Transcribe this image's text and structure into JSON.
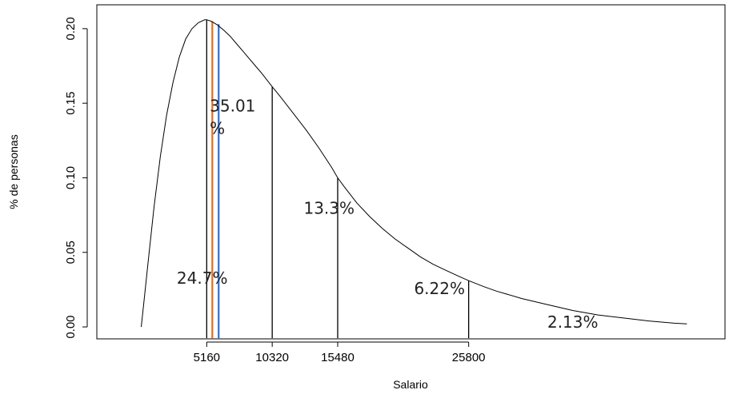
{
  "chart_data": {
    "type": "line",
    "title": "",
    "xlabel": "Salario",
    "ylabel": "% de personas",
    "xlim": [
      -3500,
      46000
    ],
    "ylim": [
      -0.008,
      0.216
    ],
    "grid": false,
    "legend": "none",
    "curve_color": "#000000",
    "x_ticks": [
      {
        "value": 5160,
        "label": "5160"
      },
      {
        "value": 10320,
        "label": "10320"
      },
      {
        "value": 15480,
        "label": "15480"
      },
      {
        "value": 25800,
        "label": "25800"
      }
    ],
    "y_ticks": [
      {
        "value": 0.0,
        "label": "0.00"
      },
      {
        "value": 0.05,
        "label": "0.05"
      },
      {
        "value": 0.1,
        "label": "0.10"
      },
      {
        "value": 0.15,
        "label": "0.15"
      },
      {
        "value": 0.2,
        "label": "0.20"
      }
    ],
    "series": [
      {
        "x": [
          0,
          200,
          500,
          1000,
          1500,
          2000,
          2500,
          3000,
          3500,
          4000,
          4500,
          5000,
          5160,
          5500,
          6000,
          6500,
          7000,
          7500,
          8000,
          8500,
          9000,
          9500,
          10000,
          10320,
          11000,
          12000,
          13000,
          14000,
          15000,
          15480,
          16000,
          17000,
          18000,
          19000,
          20000,
          21000,
          22000,
          23000,
          24000,
          25000,
          25800,
          27000,
          28000,
          30000,
          32000,
          34000,
          36000,
          38000,
          40000,
          42000,
          43000
        ],
        "y": [
          0.0,
          0.016,
          0.04,
          0.08,
          0.114,
          0.142,
          0.164,
          0.181,
          0.193,
          0.2,
          0.204,
          0.206,
          0.206,
          0.205,
          0.2025,
          0.199,
          0.195,
          0.19,
          0.185,
          0.18,
          0.175,
          0.17,
          0.1645,
          0.161,
          0.154,
          0.143,
          0.132,
          0.12,
          0.107,
          0.1,
          0.094,
          0.083,
          0.074,
          0.066,
          0.059,
          0.053,
          0.047,
          0.042,
          0.038,
          0.034,
          0.031,
          0.027,
          0.024,
          0.019,
          0.015,
          0.011,
          0.008,
          0.006,
          0.004,
          0.0025,
          0.002
        ]
      }
    ],
    "vertical_lines": [
      {
        "x": 5160,
        "y_top": 0.206,
        "color": "#000000"
      },
      {
        "x": 10320,
        "y_top": 0.161,
        "color": "#000000"
      },
      {
        "x": 15480,
        "y_top": 0.1,
        "color": "#000000"
      },
      {
        "x": 25800,
        "y_top": 0.031,
        "color": "#000000"
      },
      {
        "x": 5600,
        "y_top": 0.205,
        "color": "#e46c1b"
      },
      {
        "x": 6100,
        "y_top": 0.203,
        "color": "#2f6fd6"
      }
    ],
    "annotations": [
      {
        "text": "24.7%",
        "x": 2800,
        "y": 0.029
      },
      {
        "lines": [
          "35.01",
          "%"
        ],
        "x": 5400,
        "y": 0.1445
      },
      {
        "text": "13.3%",
        "x": 12800,
        "y": 0.076
      },
      {
        "text": "6.22%",
        "x": 21500,
        "y": 0.022
      },
      {
        "text": "2.13%",
        "x": 32000,
        "y": -0.0005
      }
    ]
  }
}
